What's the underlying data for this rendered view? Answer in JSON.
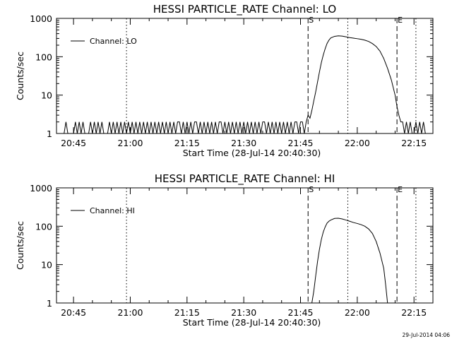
{
  "stamp": "29-Jul-2014 04:06",
  "chart_data": [
    {
      "type": "line",
      "title": "HESSI PARTICLE_RATE Channel: LO",
      "xlabel": "Start Time (28-Jul-14 20:40:30)",
      "ylabel": "Counts/sec",
      "yscale": "log",
      "ylim": [
        1,
        1000
      ],
      "yticks": [
        "1",
        "10",
        "100",
        "1000"
      ],
      "xlim": [
        "20:40:30",
        "22:20:00"
      ],
      "xticks": [
        "20:45",
        "21:00",
        "21:15",
        "21:30",
        "21:45",
        "22:00",
        "22:15"
      ],
      "grid": false,
      "legend": "top-left",
      "series": [
        {
          "name": "Channel: LO",
          "points": [
            [
              "20:42:30",
              1
            ],
            [
              "20:43:00",
              2
            ],
            [
              "20:43:30",
              1
            ],
            [
              "20:45:00",
              1
            ],
            [
              "20:45:30",
              2
            ],
            [
              "20:46:00",
              1
            ],
            [
              "20:46:30",
              2
            ],
            [
              "20:47:00",
              1
            ],
            [
              "20:47:30",
              2
            ],
            [
              "20:48:00",
              1
            ],
            [
              "20:49:00",
              1
            ],
            [
              "20:49:30",
              2
            ],
            [
              "20:50:00",
              1
            ],
            [
              "20:50:30",
              2
            ],
            [
              "20:51:00",
              1
            ],
            [
              "20:51:30",
              2
            ],
            [
              "20:52:00",
              1
            ],
            [
              "20:52:30",
              2
            ],
            [
              "20:53:00",
              1
            ],
            [
              "20:54:00",
              1
            ],
            [
              "20:54:30",
              2
            ],
            [
              "20:55:00",
              1
            ],
            [
              "20:55:30",
              2
            ],
            [
              "20:56:00",
              1
            ],
            [
              "20:56:30",
              2
            ],
            [
              "20:57:00",
              1
            ],
            [
              "20:57:30",
              2
            ],
            [
              "20:58:00",
              1
            ],
            [
              "20:58:30",
              2
            ],
            [
              "20:59:00",
              1
            ],
            [
              "20:59:30",
              2
            ],
            [
              "21:00:00",
              1
            ],
            [
              "21:00:30",
              2
            ],
            [
              "21:01:00",
              1
            ],
            [
              "21:01:30",
              2
            ],
            [
              "21:02:00",
              1
            ],
            [
              "21:02:30",
              2
            ],
            [
              "21:03:00",
              1
            ],
            [
              "21:03:30",
              2
            ],
            [
              "21:04:00",
              1
            ],
            [
              "21:04:30",
              2
            ],
            [
              "21:05:00",
              1
            ],
            [
              "21:05:30",
              2
            ],
            [
              "21:06:00",
              1
            ],
            [
              "21:06:30",
              2
            ],
            [
              "21:07:00",
              1
            ],
            [
              "21:07:30",
              2
            ],
            [
              "21:08:00",
              1
            ],
            [
              "21:08:30",
              2
            ],
            [
              "21:09:00",
              1
            ],
            [
              "21:09:30",
              2
            ],
            [
              "21:10:00",
              1
            ],
            [
              "21:10:30",
              2
            ],
            [
              "21:11:00",
              1
            ],
            [
              "21:11:30",
              2
            ],
            [
              "21:12:00",
              1
            ],
            [
              "21:12:30",
              2
            ],
            [
              "21:13:00",
              2
            ],
            [
              "21:13:30",
              1
            ],
            [
              "21:14:00",
              2
            ],
            [
              "21:14:30",
              1
            ],
            [
              "21:15:00",
              2
            ],
            [
              "21:15:30",
              1
            ],
            [
              "21:16:00",
              2
            ],
            [
              "21:16:30",
              1
            ],
            [
              "21:17:00",
              2
            ],
            [
              "21:17:30",
              2
            ],
            [
              "21:18:00",
              1
            ],
            [
              "21:18:30",
              2
            ],
            [
              "21:19:00",
              1
            ],
            [
              "21:19:30",
              2
            ],
            [
              "21:20:00",
              1
            ],
            [
              "21:20:30",
              2
            ],
            [
              "21:21:00",
              1
            ],
            [
              "21:21:30",
              2
            ],
            [
              "21:22:00",
              1
            ],
            [
              "21:22:30",
              2
            ],
            [
              "21:23:00",
              1
            ],
            [
              "21:23:30",
              2
            ],
            [
              "21:24:00",
              2
            ],
            [
              "21:24:30",
              1
            ],
            [
              "21:25:00",
              2
            ],
            [
              "21:25:30",
              1
            ],
            [
              "21:26:00",
              2
            ],
            [
              "21:26:30",
              1
            ],
            [
              "21:27:00",
              2
            ],
            [
              "21:27:30",
              1
            ],
            [
              "21:28:00",
              2
            ],
            [
              "21:28:30",
              1
            ],
            [
              "21:29:00",
              2
            ],
            [
              "21:29:30",
              1
            ],
            [
              "21:30:00",
              2
            ],
            [
              "21:30:30",
              1
            ],
            [
              "21:31:00",
              2
            ],
            [
              "21:31:30",
              1
            ],
            [
              "21:32:00",
              2
            ],
            [
              "21:32:30",
              1
            ],
            [
              "21:33:00",
              2
            ],
            [
              "21:33:30",
              1
            ],
            [
              "21:34:00",
              2
            ],
            [
              "21:34:30",
              1
            ],
            [
              "21:35:00",
              2
            ],
            [
              "21:35:30",
              2
            ],
            [
              "21:36:00",
              1
            ],
            [
              "21:36:30",
              2
            ],
            [
              "21:37:00",
              1
            ],
            [
              "21:37:30",
              2
            ],
            [
              "21:38:00",
              1
            ],
            [
              "21:38:30",
              2
            ],
            [
              "21:39:00",
              1
            ],
            [
              "21:39:30",
              2
            ],
            [
              "21:40:00",
              1
            ],
            [
              "21:40:30",
              2
            ],
            [
              "21:41:00",
              1
            ],
            [
              "21:41:30",
              2
            ],
            [
              "21:42:00",
              1
            ],
            [
              "21:42:30",
              2
            ],
            [
              "21:43:00",
              1
            ],
            [
              "21:43:30",
              2
            ],
            [
              "21:44:00",
              2
            ],
            [
              "21:44:30",
              1
            ],
            [
              "21:45:00",
              2
            ],
            [
              "21:45:30",
              2
            ],
            [
              "21:46:00",
              1
            ],
            [
              "21:46:30",
              2
            ],
            [
              "21:47:00",
              3
            ],
            [
              "21:47:30",
              2.5
            ],
            [
              "21:48:00",
              4
            ],
            [
              "21:48:30",
              7
            ],
            [
              "21:49:00",
              12
            ],
            [
              "21:49:30",
              22
            ],
            [
              "21:50:00",
              40
            ],
            [
              "21:50:30",
              70
            ],
            [
              "21:51:00",
              110
            ],
            [
              "21:51:30",
              160
            ],
            [
              "21:52:00",
              220
            ],
            [
              "21:52:30",
              270
            ],
            [
              "21:53:00",
              310
            ],
            [
              "21:54:00",
              340
            ],
            [
              "21:55:00",
              350
            ],
            [
              "21:56:00",
              345
            ],
            [
              "21:57:00",
              330
            ],
            [
              "21:58:00",
              315
            ],
            [
              "21:59:00",
              305
            ],
            [
              "22:00:00",
              295
            ],
            [
              "22:01:00",
              285
            ],
            [
              "22:02:00",
              270
            ],
            [
              "22:03:00",
              250
            ],
            [
              "22:04:00",
              220
            ],
            [
              "22:05:00",
              185
            ],
            [
              "22:06:00",
              140
            ],
            [
              "22:07:00",
              90
            ],
            [
              "22:08:00",
              50
            ],
            [
              "22:09:00",
              25
            ],
            [
              "22:10:00",
              10
            ],
            [
              "22:10:30",
              5
            ],
            [
              "22:11:00",
              3
            ],
            [
              "22:11:30",
              2
            ],
            [
              "22:12:00",
              2
            ],
            [
              "22:12:30",
              1
            ],
            [
              "22:13:00",
              2
            ],
            [
              "22:13:30",
              1
            ],
            [
              "22:14:00",
              2
            ],
            [
              "22:14:30",
              1
            ],
            [
              "22:15:00",
              1
            ],
            [
              "22:15:30",
              2
            ],
            [
              "22:16:00",
              1
            ],
            [
              "22:16:30",
              2
            ],
            [
              "22:17:00",
              1
            ],
            [
              "22:17:30",
              2
            ],
            [
              "22:18:00",
              1
            ]
          ]
        }
      ],
      "markers": [
        {
          "label": "S",
          "x": "21:47:00",
          "style": "dashed"
        },
        {
          "label": "E",
          "x": "22:10:30",
          "style": "dashed"
        },
        {
          "label": "",
          "x": "20:59:00",
          "style": "dotted"
        },
        {
          "label": "",
          "x": "21:57:30",
          "style": "dotted"
        },
        {
          "label": "",
          "x": "22:15:30",
          "style": "dotted"
        }
      ]
    },
    {
      "type": "line",
      "title": "HESSI PARTICLE_RATE Channel: HI",
      "xlabel": "Start Time (28-Jul-14 20:40:30)",
      "ylabel": "Counts/sec",
      "yscale": "log",
      "ylim": [
        1,
        1000
      ],
      "yticks": [
        "1",
        "10",
        "100",
        "1000"
      ],
      "xlim": [
        "20:40:30",
        "22:20:00"
      ],
      "xticks": [
        "20:45",
        "21:00",
        "21:15",
        "21:30",
        "21:45",
        "22:00",
        "22:15"
      ],
      "grid": false,
      "legend": "top-left",
      "series": [
        {
          "name": "Channel: HI",
          "points": [
            [
              "21:48:00",
              1
            ],
            [
              "21:48:30",
              2
            ],
            [
              "21:49:00",
              5
            ],
            [
              "21:49:30",
              12
            ],
            [
              "21:50:00",
              25
            ],
            [
              "21:50:30",
              45
            ],
            [
              "21:51:00",
              70
            ],
            [
              "21:51:30",
              95
            ],
            [
              "21:52:00",
              120
            ],
            [
              "21:52:30",
              135
            ],
            [
              "21:53:00",
              145
            ],
            [
              "21:54:00",
              160
            ],
            [
              "21:55:00",
              162
            ],
            [
              "21:56:00",
              155
            ],
            [
              "21:57:00",
              145
            ],
            [
              "21:58:00",
              135
            ],
            [
              "21:59:00",
              125
            ],
            [
              "22:00:00",
              118
            ],
            [
              "22:01:00",
              110
            ],
            [
              "22:02:00",
              100
            ],
            [
              "22:03:00",
              85
            ],
            [
              "22:04:00",
              65
            ],
            [
              "22:05:00",
              40
            ],
            [
              "22:06:00",
              20
            ],
            [
              "22:07:00",
              8
            ],
            [
              "22:07:30",
              3
            ],
            [
              "22:08:00",
              1
            ]
          ]
        }
      ],
      "markers": [
        {
          "label": "S",
          "x": "21:47:00",
          "style": "dashed"
        },
        {
          "label": "E",
          "x": "22:10:30",
          "style": "dashed"
        },
        {
          "label": "",
          "x": "20:59:00",
          "style": "dotted"
        },
        {
          "label": "",
          "x": "21:57:30",
          "style": "dotted"
        },
        {
          "label": "",
          "x": "22:15:30",
          "style": "dotted"
        }
      ]
    }
  ]
}
